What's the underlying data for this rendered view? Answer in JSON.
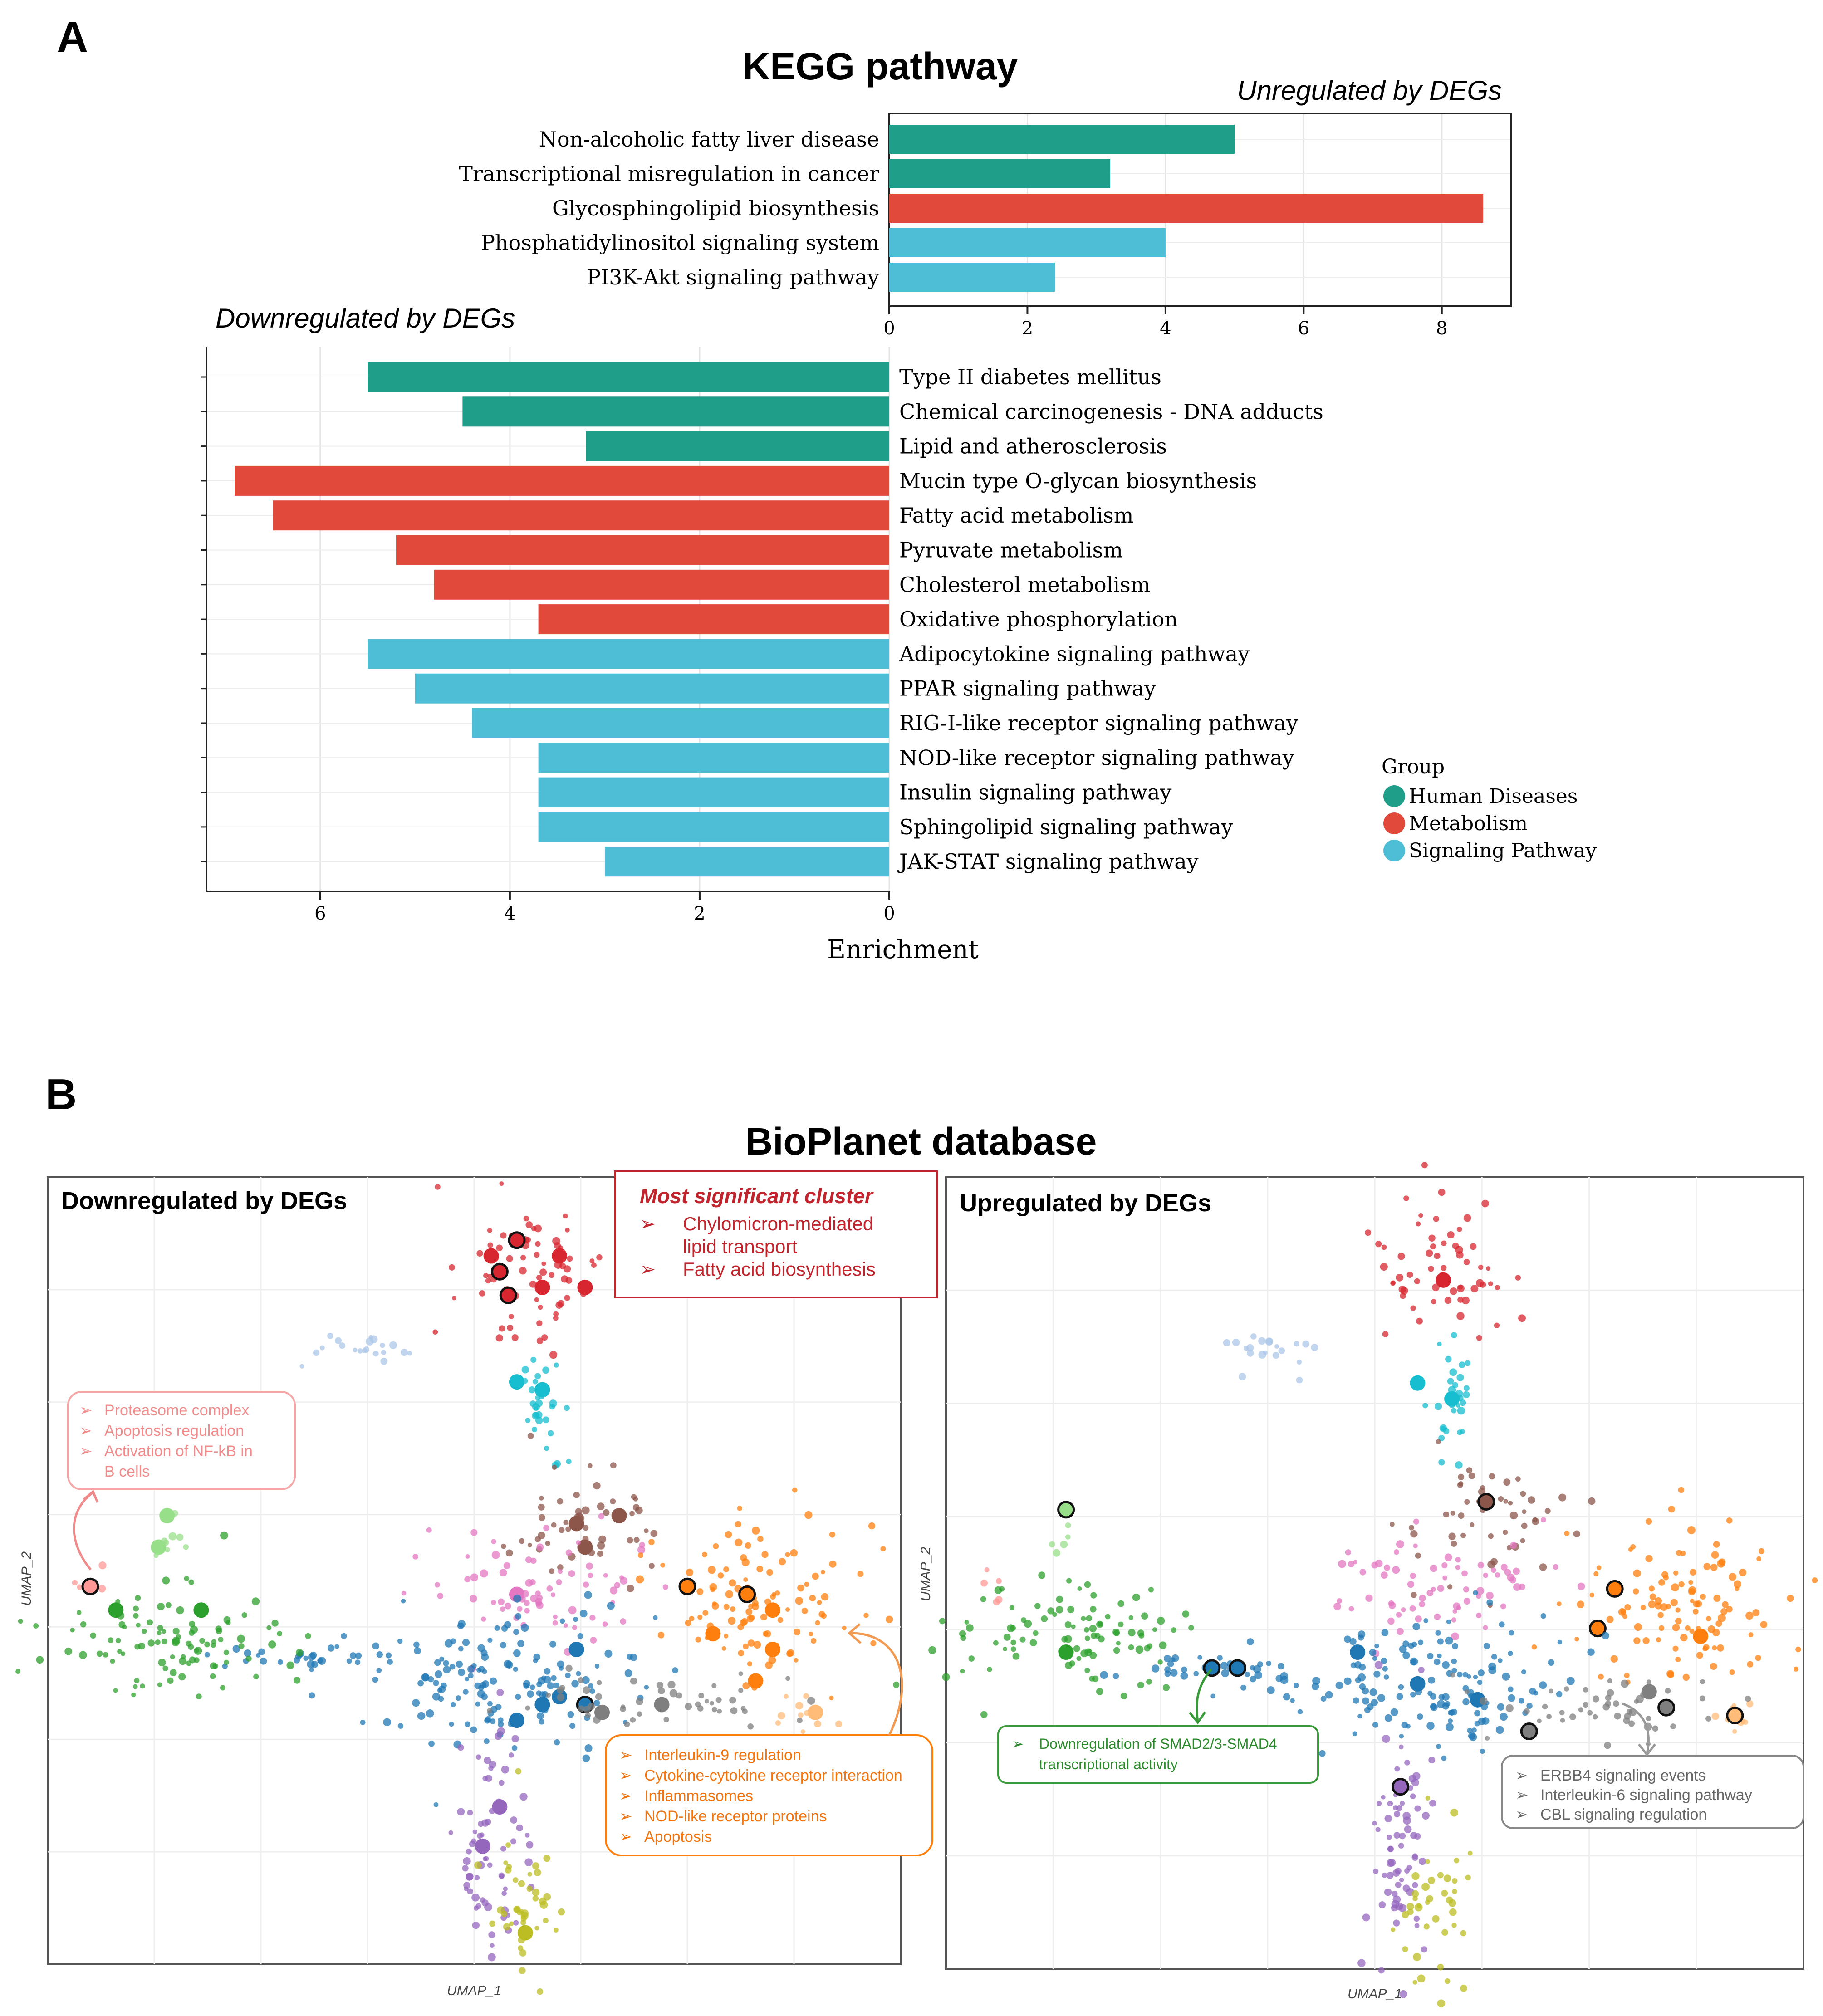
{
  "panel_a": {
    "letter": "A",
    "title": "KEGG pathway",
    "up_label": "Unregulated by DEGs",
    "down_label": "Downregulated by DEGs",
    "xlabel": "Enrichment"
  },
  "legend": {
    "title": "Group",
    "items": [
      {
        "label": "Human Diseases",
        "color": "#1f9e89"
      },
      {
        "label": "Metabolism",
        "color": "#e14a3b"
      },
      {
        "label": "Signaling Pathway",
        "color": "#4ebdd6"
      }
    ]
  },
  "chart_data": [
    {
      "type": "bar",
      "orientation": "horizontal",
      "title": "Unregulated by DEGs",
      "xlabel": "Enrichment",
      "xlim": [
        0,
        9
      ],
      "xticks": [
        0,
        2,
        4,
        6,
        8
      ],
      "categories": [
        "Non-alcoholic fatty liver disease",
        "Transcriptional misregulation in cancer",
        "Glycosphingolipid biosynthesis",
        "Phosphatidylinositol signaling system",
        "PI3K-Akt signaling pathway"
      ],
      "values": [
        5.0,
        3.2,
        8.6,
        4.0,
        2.4
      ],
      "groups": [
        "Human Diseases",
        "Human Diseases",
        "Metabolism",
        "Signaling Pathway",
        "Signaling Pathway"
      ],
      "grid": true
    },
    {
      "type": "bar",
      "orientation": "horizontal",
      "title": "Downregulated by DEGs",
      "xlabel": "Enrichment",
      "xlim": [
        7.2,
        0
      ],
      "xticks": [
        6,
        4,
        2,
        0
      ],
      "categories": [
        "Type II diabetes mellitus",
        "Chemical carcinogenesis - DNA adducts",
        "Lipid and atherosclerosis",
        "Mucin type O-glycan biosynthesis",
        "Fatty acid metabolism",
        "Pyruvate metabolism",
        "Cholesterol metabolism",
        "Oxidative phosphorylation",
        "Adipocytokine signaling pathway",
        "PPAR signaling pathway",
        "RIG-I-like receptor signaling pathway",
        "NOD-like receptor signaling pathway",
        "Insulin signaling pathway",
        "Sphingolipid signaling pathway",
        "JAK-STAT signaling pathway"
      ],
      "values": [
        5.5,
        4.5,
        3.2,
        6.9,
        6.5,
        5.2,
        4.8,
        3.7,
        5.5,
        5.0,
        4.4,
        3.7,
        3.7,
        3.7,
        3.0
      ],
      "groups": [
        "Human Diseases",
        "Human Diseases",
        "Human Diseases",
        "Metabolism",
        "Metabolism",
        "Metabolism",
        "Metabolism",
        "Metabolism",
        "Signaling Pathway",
        "Signaling Pathway",
        "Signaling Pathway",
        "Signaling Pathway",
        "Signaling Pathway",
        "Signaling Pathway",
        "Signaling Pathway"
      ],
      "grid": true
    },
    {
      "type": "scatter",
      "title": "Downregulated by DEGs",
      "xlabel": "UMAP_1",
      "ylabel": "UMAP_2",
      "clusters": [
        {
          "name": "red",
          "color": "#d7262f",
          "center": [
            0.56,
            0.87
          ],
          "spread": [
            0.05,
            0.05
          ],
          "n": 70,
          "big": [
            [
              0.55,
              0.92,
              1
            ],
            [
              0.53,
              0.88,
              1
            ],
            [
              0.6,
              0.9,
              0
            ],
            [
              0.58,
              0.86,
              0
            ],
            [
              0.54,
              0.85,
              1
            ],
            [
              0.63,
              0.86,
              0
            ],
            [
              0.52,
              0.9,
              0
            ]
          ]
        },
        {
          "name": "lightblue",
          "color": "#aec7e8",
          "center": [
            0.37,
            0.78
          ],
          "spread": [
            0.03,
            0.01
          ],
          "n": 20,
          "big": []
        },
        {
          "name": "cyan",
          "color": "#17becf",
          "center": [
            0.58,
            0.71
          ],
          "spread": [
            0.012,
            0.035
          ],
          "n": 30,
          "big": [
            [
              0.58,
              0.73,
              0
            ],
            [
              0.55,
              0.74,
              0
            ]
          ]
        },
        {
          "name": "brown",
          "color": "#8c564b",
          "center": [
            0.62,
            0.56
          ],
          "spread": [
            0.045,
            0.04
          ],
          "n": 50,
          "big": [
            [
              0.62,
              0.56,
              0
            ],
            [
              0.67,
              0.57,
              0
            ],
            [
              0.63,
              0.53,
              0
            ]
          ]
        },
        {
          "name": "pink",
          "color": "#e377c2",
          "center": [
            0.58,
            0.48
          ],
          "spread": [
            0.07,
            0.04
          ],
          "n": 70,
          "big": [
            [
              0.55,
              0.47,
              0
            ]
          ]
        },
        {
          "name": "orange",
          "color": "#ff7f0e",
          "center": [
            0.84,
            0.46
          ],
          "spread": [
            0.07,
            0.05
          ],
          "n": 110,
          "big": [
            [
              0.75,
              0.48,
              1
            ],
            [
              0.82,
              0.47,
              1
            ],
            [
              0.85,
              0.45,
              0
            ],
            [
              0.78,
              0.42,
              0
            ],
            [
              0.85,
              0.4,
              0
            ],
            [
              0.83,
              0.36,
              0
            ]
          ]
        },
        {
          "name": "peach",
          "color": "#ffbb78",
          "center": [
            0.89,
            0.32
          ],
          "spread": [
            0.02,
            0.01
          ],
          "n": 12,
          "big": [
            [
              0.9,
              0.32,
              0
            ]
          ]
        },
        {
          "name": "blue",
          "color": "#1f77b4",
          "center": [
            0.54,
            0.36
          ],
          "spread": [
            0.09,
            0.045
          ],
          "n": 150,
          "big": [
            [
              0.6,
              0.34,
              0
            ],
            [
              0.62,
              0.4,
              0
            ],
            [
              0.55,
              0.31,
              0
            ],
            [
              0.63,
              0.33,
              1
            ],
            [
              0.58,
              0.33,
              0
            ]
          ]
        },
        {
          "name": "blueline",
          "color": "#1f77b4",
          "center": [
            0.32,
            0.39
          ],
          "spread": [
            0.06,
            0.008
          ],
          "n": 30,
          "big": []
        },
        {
          "name": "gray",
          "color": "#7f7f7f",
          "center": [
            0.73,
            0.33
          ],
          "spread": [
            0.08,
            0.02
          ],
          "n": 50,
          "big": [
            [
              0.72,
              0.33,
              0
            ],
            [
              0.65,
              0.32,
              0
            ]
          ]
        },
        {
          "name": "green",
          "color": "#2ca02c",
          "center": [
            0.15,
            0.41
          ],
          "spread": [
            0.07,
            0.035
          ],
          "n": 100,
          "big": [
            [
              0.18,
              0.45,
              0
            ],
            [
              0.08,
              0.45,
              0
            ]
          ]
        },
        {
          "name": "lightgreen",
          "color": "#98df8a",
          "center": [
            0.14,
            0.54
          ],
          "spread": [
            0.012,
            0.02
          ],
          "n": 8,
          "big": [
            [
              0.14,
              0.57,
              0
            ],
            [
              0.13,
              0.53,
              0
            ]
          ]
        },
        {
          "name": "salmon",
          "color": "#ff9896",
          "center": [
            0.05,
            0.48
          ],
          "spread": [
            0.01,
            0.01
          ],
          "n": 6,
          "big": [
            [
              0.05,
              0.48,
              1
            ]
          ]
        },
        {
          "name": "purple",
          "color": "#9467bd",
          "center": [
            0.52,
            0.15
          ],
          "spread": [
            0.02,
            0.07
          ],
          "n": 70,
          "big": [
            [
              0.51,
              0.15,
              0
            ],
            [
              0.53,
              0.2,
              0
            ]
          ]
        },
        {
          "name": "olive",
          "color": "#bcbd22",
          "center": [
            0.56,
            0.08
          ],
          "spread": [
            0.02,
            0.05
          ],
          "n": 40,
          "big": [
            [
              0.56,
              0.04,
              0
            ]
          ]
        }
      ]
    },
    {
      "type": "scatter",
      "title": "Upregulated by DEGs",
      "xlabel": "UMAP_1",
      "ylabel": "UMAP_2",
      "clusters": [
        {
          "name": "red",
          "color": "#d7262f",
          "center": [
            0.58,
            0.88
          ],
          "spread": [
            0.045,
            0.045
          ],
          "n": 60,
          "big": [
            [
              0.58,
              0.87,
              0
            ]
          ]
        },
        {
          "name": "lightblue",
          "color": "#aec7e8",
          "center": [
            0.39,
            0.78
          ],
          "spread": [
            0.03,
            0.012
          ],
          "n": 20,
          "big": []
        },
        {
          "name": "cyan",
          "color": "#17becf",
          "center": [
            0.59,
            0.71
          ],
          "spread": [
            0.012,
            0.035
          ],
          "n": 30,
          "big": [
            [
              0.59,
              0.72,
              0
            ],
            [
              0.55,
              0.74,
              0
            ]
          ]
        },
        {
          "name": "brown",
          "color": "#8c564b",
          "center": [
            0.63,
            0.56
          ],
          "spread": [
            0.045,
            0.04
          ],
          "n": 50,
          "big": [
            [
              0.63,
              0.59,
              1
            ]
          ]
        },
        {
          "name": "pink",
          "color": "#e377c2",
          "center": [
            0.57,
            0.48
          ],
          "spread": [
            0.07,
            0.04
          ],
          "n": 70,
          "big": []
        },
        {
          "name": "orange",
          "color": "#ff7f0e",
          "center": [
            0.86,
            0.46
          ],
          "spread": [
            0.07,
            0.05
          ],
          "n": 110,
          "big": [
            [
              0.78,
              0.48,
              1
            ],
            [
              0.76,
              0.43,
              1
            ],
            [
              0.88,
              0.42,
              0
            ]
          ]
        },
        {
          "name": "peach",
          "color": "#ffbb78",
          "center": [
            0.92,
            0.32
          ],
          "spread": [
            0.015,
            0.01
          ],
          "n": 10,
          "big": [
            [
              0.92,
              0.32,
              1
            ]
          ]
        },
        {
          "name": "blue",
          "color": "#1f77b4",
          "center": [
            0.56,
            0.36
          ],
          "spread": [
            0.09,
            0.045
          ],
          "n": 150,
          "big": [
            [
              0.55,
              0.36,
              0
            ],
            [
              0.62,
              0.34,
              0
            ],
            [
              0.48,
              0.4,
              0
            ]
          ]
        },
        {
          "name": "blueline",
          "color": "#1f77b4",
          "center": [
            0.31,
            0.38
          ],
          "spread": [
            0.05,
            0.008
          ],
          "n": 30,
          "big": [
            [
              0.31,
              0.38,
              1
            ],
            [
              0.34,
              0.38,
              1
            ]
          ]
        },
        {
          "name": "gray",
          "color": "#7f7f7f",
          "center": [
            0.76,
            0.33
          ],
          "spread": [
            0.08,
            0.02
          ],
          "n": 50,
          "big": [
            [
              0.68,
              0.3,
              1
            ],
            [
              0.84,
              0.33,
              1
            ],
            [
              0.82,
              0.35,
              0
            ]
          ]
        },
        {
          "name": "green",
          "color": "#2ca02c",
          "center": [
            0.14,
            0.42
          ],
          "spread": [
            0.07,
            0.035
          ],
          "n": 100,
          "big": [
            [
              0.14,
              0.4,
              0
            ]
          ]
        },
        {
          "name": "lightgreen",
          "color": "#98df8a",
          "center": [
            0.14,
            0.55
          ],
          "spread": [
            0.01,
            0.02
          ],
          "n": 6,
          "big": [
            [
              0.14,
              0.58,
              1
            ]
          ]
        },
        {
          "name": "salmon",
          "color": "#ff9896",
          "center": [
            0.05,
            0.48
          ],
          "spread": [
            0.01,
            0.01
          ],
          "n": 5,
          "big": []
        },
        {
          "name": "purple",
          "color": "#9467bd",
          "center": [
            0.53,
            0.15
          ],
          "spread": [
            0.02,
            0.07
          ],
          "n": 70,
          "big": [
            [
              0.53,
              0.23,
              1
            ]
          ]
        },
        {
          "name": "olive",
          "color": "#bcbd22",
          "center": [
            0.57,
            0.08
          ],
          "spread": [
            0.02,
            0.05
          ],
          "n": 40,
          "big": []
        }
      ]
    }
  ],
  "panel_b": {
    "letter": "B",
    "title": "BioPlanet database",
    "left": {
      "label": "Downregulated by DEGs",
      "xlabel": "UMAP_1",
      "ylabel": "UMAP_2",
      "sig_box": {
        "title": "Most significant cluster",
        "items": [
          "Chylomicron-mediated",
          "lipid transport",
          "Fatty acid biosynthesis"
        ]
      },
      "pink_box": [
        "Proteasome complex",
        "Apoptosis regulation",
        "Activation of NF-kB in",
        "B cells"
      ],
      "orange_box": [
        "Interleukin-9 regulation",
        "Cytokine-cytokine receptor interaction",
        "Inflammasomes",
        "NOD-like receptor proteins",
        "Apoptosis"
      ]
    },
    "right": {
      "label": "Upregulated by DEGs",
      "xlabel": "UMAP_1",
      "ylabel": "UMAP_2",
      "green_box": [
        "Downregulation of SMAD2/3-SMAD4",
        "transcriptional activity"
      ],
      "gray_box": [
        "ERBB4 signaling events",
        "Interleukin-6 signaling pathway",
        "CBL signaling regulation"
      ]
    }
  }
}
